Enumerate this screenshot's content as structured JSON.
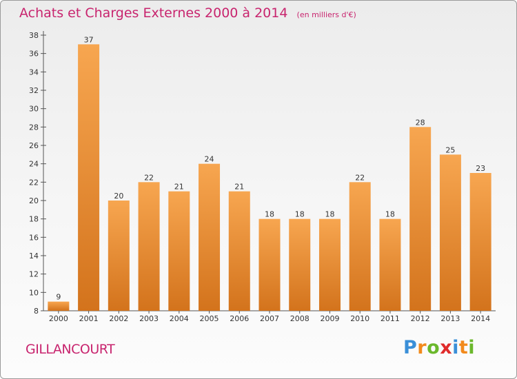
{
  "header": {
    "title": "Achats et Charges Externes 2000 à 2014",
    "unit": "(en milliers d'€)"
  },
  "location": "GILLANCOURT",
  "brand": {
    "letters": [
      "P",
      "r",
      "o",
      "x",
      "i",
      "t",
      "i"
    ],
    "colors": [
      "#3a8fd8",
      "#f28a1c",
      "#6bb82c",
      "#e02c2c",
      "#3a8fd8",
      "#f28a1c",
      "#6bb82c"
    ]
  },
  "colors": {
    "accent": "#c8246e",
    "bar_light": "#f7a650",
    "bar_dark": "#d3731c"
  },
  "chart_data": {
    "type": "bar",
    "title": "Achats et Charges Externes 2000 à 2014",
    "subtitle": "(en milliers d'€)",
    "categories": [
      "2000",
      "2001",
      "2002",
      "2003",
      "2004",
      "2005",
      "2006",
      "2007",
      "2008",
      "2009",
      "2010",
      "2011",
      "2012",
      "2013",
      "2014"
    ],
    "values": [
      9,
      37,
      20,
      22,
      21,
      24,
      21,
      18,
      18,
      18,
      22,
      18,
      28,
      25,
      23
    ],
    "ylim": [
      8,
      38
    ],
    "yticks": [
      8,
      10,
      12,
      14,
      16,
      18,
      20,
      22,
      24,
      26,
      28,
      30,
      32,
      34,
      36,
      38
    ],
    "grid": false,
    "data_labels": true
  }
}
